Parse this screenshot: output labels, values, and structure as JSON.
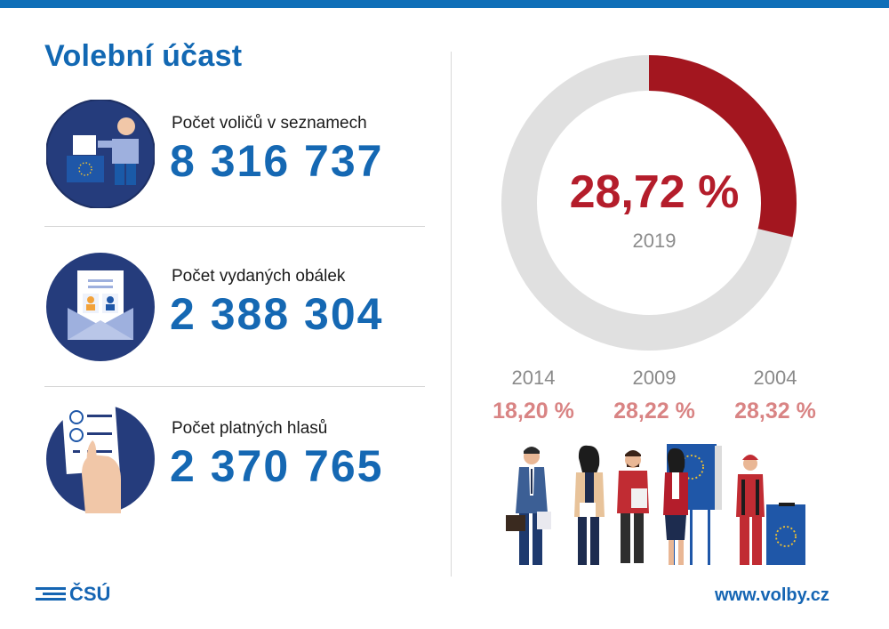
{
  "title": "Volební účast",
  "stats": [
    {
      "label": "Počet voličů v seznamech",
      "value": "8 316 737",
      "icon": "voter-ballot-box-icon"
    },
    {
      "label": "Počet vydaných obálek",
      "value": "2 388 304",
      "icon": "envelope-icon"
    },
    {
      "label": "Počet platných hlasů",
      "value": "2 370 765",
      "icon": "ballot-list-icon"
    }
  ],
  "turnout": {
    "value_text": "28,72 %",
    "value": 28.72,
    "year": "2019"
  },
  "history": [
    {
      "year": "2014",
      "value": "18,20 %"
    },
    {
      "year": "2009",
      "value": "28,22 %"
    },
    {
      "year": "2004",
      "value": "28,32 %"
    }
  ],
  "chart_data": {
    "type": "pie",
    "variant": "donut",
    "categories": [
      "2019"
    ],
    "values": [
      28.72
    ],
    "max": 100
  },
  "colors": {
    "brand": "#1268b3",
    "accent": "#b41d2b",
    "ring": "#e0e0e0",
    "history": "#d98484"
  },
  "footer": {
    "logo": "ČSÚ",
    "url": "www.volby.cz"
  }
}
